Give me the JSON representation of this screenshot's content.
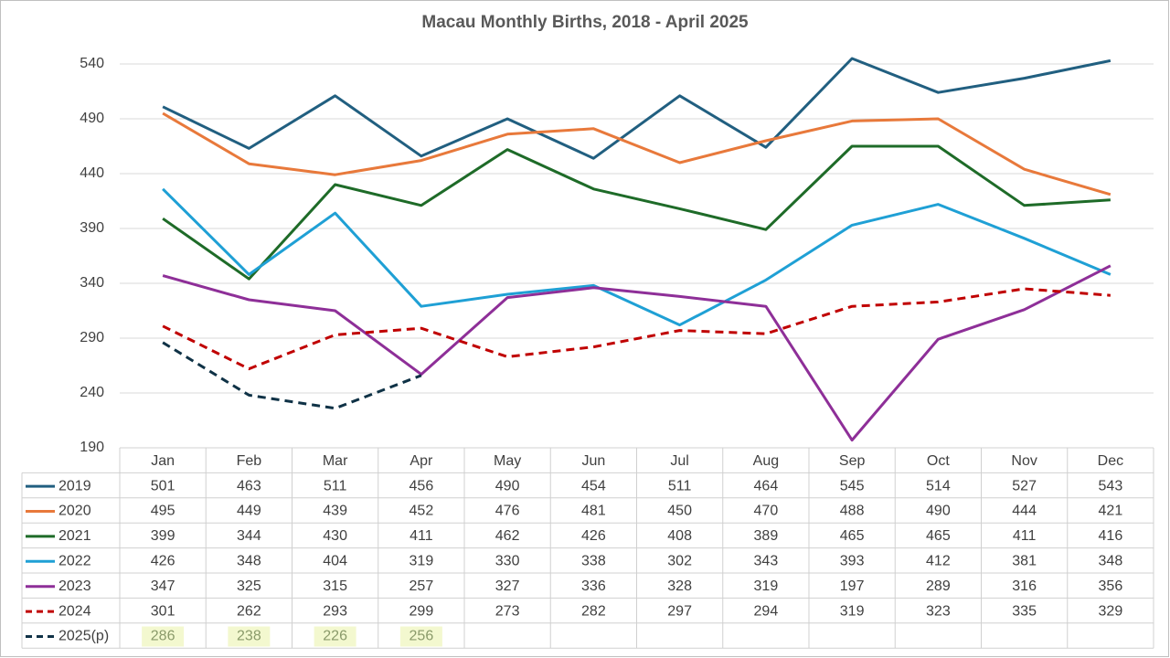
{
  "chart_data": {
    "type": "line",
    "title": "Macau Monthly Births, 2018 - April 2025",
    "categories": [
      "Jan",
      "Feb",
      "Mar",
      "Apr",
      "May",
      "Jun",
      "Jul",
      "Aug",
      "Sep",
      "Oct",
      "Nov",
      "Dec"
    ],
    "ylim": [
      190,
      550
    ],
    "yticks": [
      190,
      240,
      290,
      340,
      390,
      440,
      490,
      540
    ],
    "grid": true,
    "data_table": true,
    "series": [
      {
        "name": "2019",
        "color": "#215f80",
        "dashed": false,
        "values": [
          501,
          463,
          511,
          456,
          490,
          454,
          511,
          464,
          545,
          514,
          527,
          543
        ]
      },
      {
        "name": "2020",
        "color": "#e8793b",
        "dashed": false,
        "values": [
          495,
          449,
          439,
          452,
          476,
          481,
          450,
          470,
          488,
          490,
          444,
          421
        ]
      },
      {
        "name": "2021",
        "color": "#1e6b28",
        "dashed": false,
        "values": [
          399,
          344,
          430,
          411,
          462,
          426,
          408,
          389,
          465,
          465,
          411,
          416
        ]
      },
      {
        "name": "2022",
        "color": "#1fa0d5",
        "dashed": false,
        "values": [
          426,
          348,
          404,
          319,
          330,
          338,
          302,
          343,
          393,
          412,
          381,
          348
        ]
      },
      {
        "name": "2023",
        "color": "#8e2f98",
        "dashed": false,
        "values": [
          347,
          325,
          315,
          257,
          327,
          336,
          328,
          319,
          197,
          289,
          316,
          356
        ]
      },
      {
        "name": "2024",
        "color": "#c00000",
        "dashed": true,
        "values": [
          301,
          262,
          293,
          299,
          273,
          282,
          297,
          294,
          319,
          323,
          335,
          329
        ]
      },
      {
        "name": "2025(p)",
        "color": "#0f3246",
        "dashed": true,
        "highlight": "#f3f8cf",
        "values": [
          286,
          238,
          226,
          256,
          null,
          null,
          null,
          null,
          null,
          null,
          null,
          null
        ]
      }
    ]
  }
}
